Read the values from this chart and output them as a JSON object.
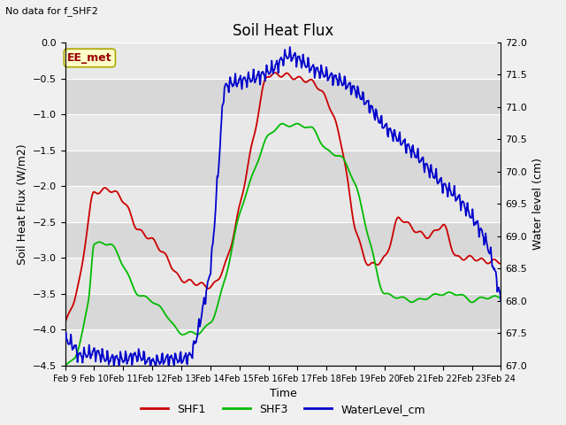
{
  "title": "Soil Heat Flux",
  "top_left_text": "No data for f_SHF2",
  "annotation_text": "EE_met",
  "xlabel": "Time",
  "ylabel_left": "Soil Heat Flux (W/m2)",
  "ylabel_right": "Water level (cm)",
  "ylim_left": [
    -4.5,
    0.0
  ],
  "ylim_right": [
    67.0,
    72.0
  ],
  "yticks_left": [
    0.0,
    -0.5,
    -1.0,
    -1.5,
    -2.0,
    -2.5,
    -3.0,
    -3.5,
    -4.0,
    -4.5
  ],
  "yticks_right": [
    67.0,
    67.5,
    68.0,
    68.5,
    69.0,
    69.5,
    70.0,
    70.5,
    71.0,
    71.5,
    72.0
  ],
  "xtick_labels": [
    "Feb 9",
    "Feb 10",
    "Feb 11",
    "Feb 12",
    "Feb 13",
    "Feb 14",
    "Feb 15",
    "Feb 16",
    "Feb 17",
    "Feb 18",
    "Feb 19",
    "Feb 20",
    "Feb 21",
    "Feb 22",
    "Feb 23",
    "Feb 24"
  ],
  "color_shf1": "#cc0000",
  "color_shf3": "#00bb00",
  "color_water": "#0000cc",
  "legend_labels": [
    "SHF1",
    "SHF3",
    "WaterLevel_cm"
  ],
  "fig_bg": "#f0f0f0",
  "plot_bg_light": "#e8e8e8",
  "plot_bg_dark": "#d8d8d8",
  "grid_color": "#ffffff",
  "linewidth": 1.3,
  "n_points": 600
}
